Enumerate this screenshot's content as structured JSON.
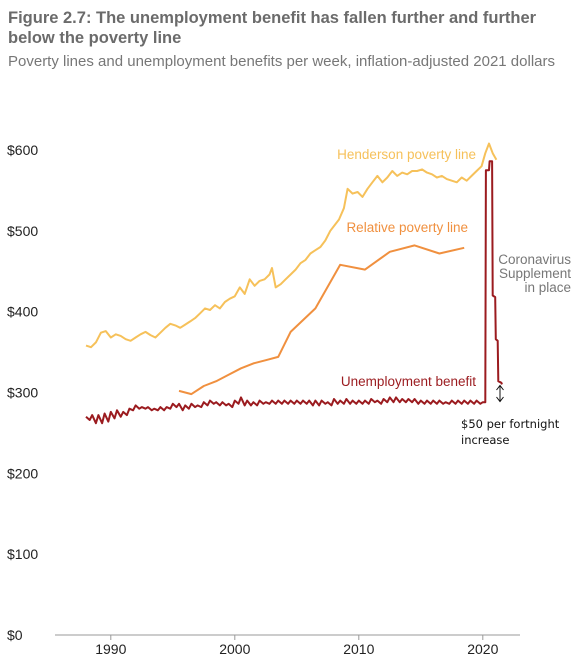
{
  "chart_data": {
    "type": "line",
    "title": "Figure 2.7: The unemployment benefit has fallen further and further below the poverty line",
    "subtitle": "Poverty lines and unemployment benefits per week, inflation-adjusted 2021 dollars",
    "xlim": [
      1985.5,
      2023
    ],
    "ylim": [
      0,
      600
    ],
    "x_ticks": [
      1990,
      2000,
      2010,
      2020
    ],
    "y_ticks": [
      {
        "value": 0,
        "label": "$0"
      },
      {
        "value": 100,
        "label": "$100"
      },
      {
        "value": 200,
        "label": "$200"
      },
      {
        "value": 300,
        "label": "$300"
      },
      {
        "value": 400,
        "label": "$400"
      },
      {
        "value": 500,
        "label": "$500"
      },
      {
        "value": 600,
        "label": "$600"
      }
    ],
    "grid": false,
    "series": [
      {
        "name": "Henderson poverty line",
        "color": "#F6C15A",
        "points": [
          [
            1988.0,
            358
          ],
          [
            1988.4,
            356
          ],
          [
            1988.8,
            362
          ],
          [
            1989.2,
            374
          ],
          [
            1989.6,
            376
          ],
          [
            1990.0,
            368
          ],
          [
            1990.4,
            372
          ],
          [
            1990.8,
            370
          ],
          [
            1991.2,
            366
          ],
          [
            1991.6,
            364
          ],
          [
            1992.0,
            368
          ],
          [
            1992.4,
            372
          ],
          [
            1992.8,
            375
          ],
          [
            1993.2,
            371
          ],
          [
            1993.6,
            368
          ],
          [
            1994.0,
            374
          ],
          [
            1994.4,
            380
          ],
          [
            1994.8,
            385
          ],
          [
            1995.2,
            383
          ],
          [
            1995.6,
            380
          ],
          [
            1996.0,
            384
          ],
          [
            1996.4,
            388
          ],
          [
            1996.8,
            392
          ],
          [
            1997.2,
            398
          ],
          [
            1997.6,
            404
          ],
          [
            1998.0,
            402
          ],
          [
            1998.4,
            408
          ],
          [
            1998.8,
            404
          ],
          [
            1999.2,
            412
          ],
          [
            1999.6,
            416
          ],
          [
            2000.0,
            419
          ],
          [
            2000.4,
            430
          ],
          [
            2000.8,
            422
          ],
          [
            2001.2,
            440
          ],
          [
            2001.6,
            432
          ],
          [
            2002.0,
            438
          ],
          [
            2002.4,
            440
          ],
          [
            2002.8,
            446
          ],
          [
            2003.0,
            454
          ],
          [
            2003.3,
            430
          ],
          [
            2003.7,
            434
          ],
          [
            2004.1,
            440
          ],
          [
            2004.5,
            446
          ],
          [
            2004.9,
            452
          ],
          [
            2005.3,
            460
          ],
          [
            2005.7,
            464
          ],
          [
            2006.1,
            472
          ],
          [
            2006.5,
            476
          ],
          [
            2006.9,
            480
          ],
          [
            2007.3,
            488
          ],
          [
            2007.7,
            500
          ],
          [
            2008.0,
            506
          ],
          [
            2008.4,
            514
          ],
          [
            2008.8,
            528
          ],
          [
            2009.1,
            552
          ],
          [
            2009.5,
            546
          ],
          [
            2009.9,
            548
          ],
          [
            2010.3,
            542
          ],
          [
            2010.7,
            552
          ],
          [
            2011.1,
            560
          ],
          [
            2011.5,
            568
          ],
          [
            2011.9,
            560
          ],
          [
            2012.3,
            566
          ],
          [
            2012.7,
            574
          ],
          [
            2013.1,
            568
          ],
          [
            2013.5,
            572
          ],
          [
            2013.9,
            570
          ],
          [
            2014.3,
            574
          ],
          [
            2014.7,
            574
          ],
          [
            2015.1,
            576
          ],
          [
            2015.5,
            572
          ],
          [
            2015.9,
            570
          ],
          [
            2016.3,
            566
          ],
          [
            2016.7,
            568
          ],
          [
            2017.1,
            564
          ],
          [
            2017.5,
            562
          ],
          [
            2017.9,
            560
          ],
          [
            2018.3,
            566
          ],
          [
            2018.7,
            562
          ],
          [
            2019.1,
            568
          ],
          [
            2019.5,
            574
          ],
          [
            2019.9,
            580
          ],
          [
            2020.2,
            596
          ],
          [
            2020.5,
            608
          ],
          [
            2020.8,
            596
          ],
          [
            2021.1,
            588
          ]
        ]
      },
      {
        "name": "Relative poverty line",
        "color": "#F0903F",
        "points": [
          [
            1995.5,
            302
          ],
          [
            1996.5,
            298
          ],
          [
            1997.5,
            308
          ],
          [
            1998.5,
            314
          ],
          [
            1999.5,
            322
          ],
          [
            2000.5,
            330
          ],
          [
            2001.5,
            336
          ],
          [
            2002.5,
            340
          ],
          [
            2003.5,
            344
          ],
          [
            2004.5,
            375
          ],
          [
            2006.5,
            404
          ],
          [
            2008.5,
            458
          ],
          [
            2010.5,
            452
          ],
          [
            2012.5,
            474
          ],
          [
            2014.5,
            482
          ],
          [
            2016.5,
            472
          ],
          [
            2018.5,
            479
          ]
        ]
      },
      {
        "name": "Unemployment benefit",
        "color": "#9B1B1F",
        "points": [
          [
            1988.0,
            270
          ],
          [
            1988.3,
            266
          ],
          [
            1988.5,
            272
          ],
          [
            1988.8,
            262
          ],
          [
            1989.0,
            272
          ],
          [
            1989.3,
            262
          ],
          [
            1989.5,
            274
          ],
          [
            1989.8,
            264
          ],
          [
            1990.0,
            276
          ],
          [
            1990.3,
            268
          ],
          [
            1990.5,
            278
          ],
          [
            1990.8,
            270
          ],
          [
            1991.0,
            276
          ],
          [
            1991.3,
            272
          ],
          [
            1991.5,
            280
          ],
          [
            1991.8,
            278
          ],
          [
            1992.0,
            284
          ],
          [
            1992.3,
            280
          ],
          [
            1992.5,
            282
          ],
          [
            1992.8,
            280
          ],
          [
            1993.0,
            282
          ],
          [
            1993.3,
            278
          ],
          [
            1993.5,
            280
          ],
          [
            1993.8,
            278
          ],
          [
            1994.0,
            282
          ],
          [
            1994.3,
            278
          ],
          [
            1994.5,
            282
          ],
          [
            1994.8,
            280
          ],
          [
            1995.0,
            286
          ],
          [
            1995.3,
            282
          ],
          [
            1995.5,
            286
          ],
          [
            1995.8,
            278
          ],
          [
            1996.0,
            284
          ],
          [
            1996.3,
            280
          ],
          [
            1996.5,
            286
          ],
          [
            1996.8,
            282
          ],
          [
            1997.0,
            284
          ],
          [
            1997.3,
            282
          ],
          [
            1997.5,
            288
          ],
          [
            1997.8,
            284
          ],
          [
            1998.0,
            290
          ],
          [
            1998.3,
            286
          ],
          [
            1998.5,
            288
          ],
          [
            1998.8,
            284
          ],
          [
            1999.0,
            288
          ],
          [
            1999.3,
            284
          ],
          [
            1999.5,
            286
          ],
          [
            1999.8,
            282
          ],
          [
            2000.0,
            290
          ],
          [
            2000.3,
            286
          ],
          [
            2000.5,
            294
          ],
          [
            2000.8,
            284
          ],
          [
            2001.0,
            290
          ],
          [
            2001.3,
            284
          ],
          [
            2001.5,
            288
          ],
          [
            2001.8,
            284
          ],
          [
            2002.0,
            290
          ],
          [
            2002.3,
            286
          ],
          [
            2002.5,
            288
          ],
          [
            2002.8,
            286
          ],
          [
            2003.0,
            290
          ],
          [
            2003.3,
            286
          ],
          [
            2003.5,
            290
          ],
          [
            2003.8,
            286
          ],
          [
            2004.0,
            290
          ],
          [
            2004.3,
            286
          ],
          [
            2004.5,
            290
          ],
          [
            2004.8,
            286
          ],
          [
            2005.0,
            290
          ],
          [
            2005.3,
            286
          ],
          [
            2005.5,
            290
          ],
          [
            2005.8,
            286
          ],
          [
            2006.0,
            290
          ],
          [
            2006.3,
            284
          ],
          [
            2006.5,
            290
          ],
          [
            2006.8,
            284
          ],
          [
            2007.0,
            290
          ],
          [
            2007.3,
            286
          ],
          [
            2007.5,
            288
          ],
          [
            2007.8,
            284
          ],
          [
            2008.0,
            292
          ],
          [
            2008.3,
            286
          ],
          [
            2008.5,
            290
          ],
          [
            2008.8,
            286
          ],
          [
            2009.0,
            292
          ],
          [
            2009.3,
            286
          ],
          [
            2009.5,
            290
          ],
          [
            2009.8,
            286
          ],
          [
            2010.0,
            290
          ],
          [
            2010.3,
            286
          ],
          [
            2010.5,
            290
          ],
          [
            2010.8,
            286
          ],
          [
            2011.0,
            292
          ],
          [
            2011.3,
            288
          ],
          [
            2011.5,
            290
          ],
          [
            2011.8,
            286
          ],
          [
            2012.0,
            292
          ],
          [
            2012.3,
            288
          ],
          [
            2012.5,
            294
          ],
          [
            2012.8,
            288
          ],
          [
            2013.0,
            294
          ],
          [
            2013.3,
            288
          ],
          [
            2013.5,
            292
          ],
          [
            2013.8,
            288
          ],
          [
            2014.0,
            292
          ],
          [
            2014.3,
            288
          ],
          [
            2014.5,
            292
          ],
          [
            2014.8,
            286
          ],
          [
            2015.0,
            290
          ],
          [
            2015.3,
            286
          ],
          [
            2015.5,
            290
          ],
          [
            2015.8,
            286
          ],
          [
            2016.0,
            290
          ],
          [
            2016.3,
            286
          ],
          [
            2016.5,
            290
          ],
          [
            2016.8,
            286
          ],
          [
            2017.0,
            288
          ],
          [
            2017.3,
            286
          ],
          [
            2017.5,
            290
          ],
          [
            2017.8,
            286
          ],
          [
            2018.0,
            290
          ],
          [
            2018.3,
            286
          ],
          [
            2018.5,
            290
          ],
          [
            2018.8,
            286
          ],
          [
            2019.0,
            290
          ],
          [
            2019.3,
            286
          ],
          [
            2019.5,
            290
          ],
          [
            2019.8,
            286
          ],
          [
            2020.0,
            288
          ],
          [
            2020.2,
            288
          ],
          [
            2020.25,
            575
          ],
          [
            2020.5,
            575
          ],
          [
            2020.55,
            586
          ],
          [
            2020.75,
            586
          ],
          [
            2020.8,
            420
          ],
          [
            2021.0,
            418
          ],
          [
            2021.05,
            366
          ],
          [
            2021.2,
            364
          ],
          [
            2021.25,
            314
          ],
          [
            2021.5,
            312
          ],
          [
            2021.55,
            310
          ]
        ]
      }
    ],
    "annotations": {
      "henderson_label": "Henderson poverty line",
      "relative_label": "Relative poverty line",
      "benefit_label": "Unemployment benefit",
      "coronavirus_lines": [
        "Coronavirus",
        "Supplement",
        "in place"
      ],
      "increase_lines": [
        "$50 per fortnight",
        "increase"
      ]
    }
  }
}
